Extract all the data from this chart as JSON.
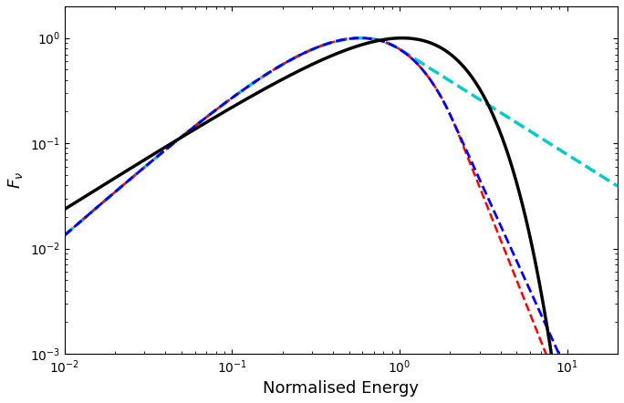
{
  "xlabel": "Normalised Energy",
  "ylabel": "$F_{\\nu}$",
  "xlim": [
    0.01,
    20
  ],
  "ylim": [
    0.001,
    2.0
  ],
  "figsize": [
    6.84,
    4.42
  ],
  "dpi": 100,
  "colors": {
    "black": "#000000",
    "blue": "#0000ff",
    "red": "#ff0000",
    "cyan": "#00cccc"
  },
  "linewidths": {
    "black": 2.5,
    "blue": 2.0,
    "red": 1.8,
    "cyan": 2.5
  }
}
